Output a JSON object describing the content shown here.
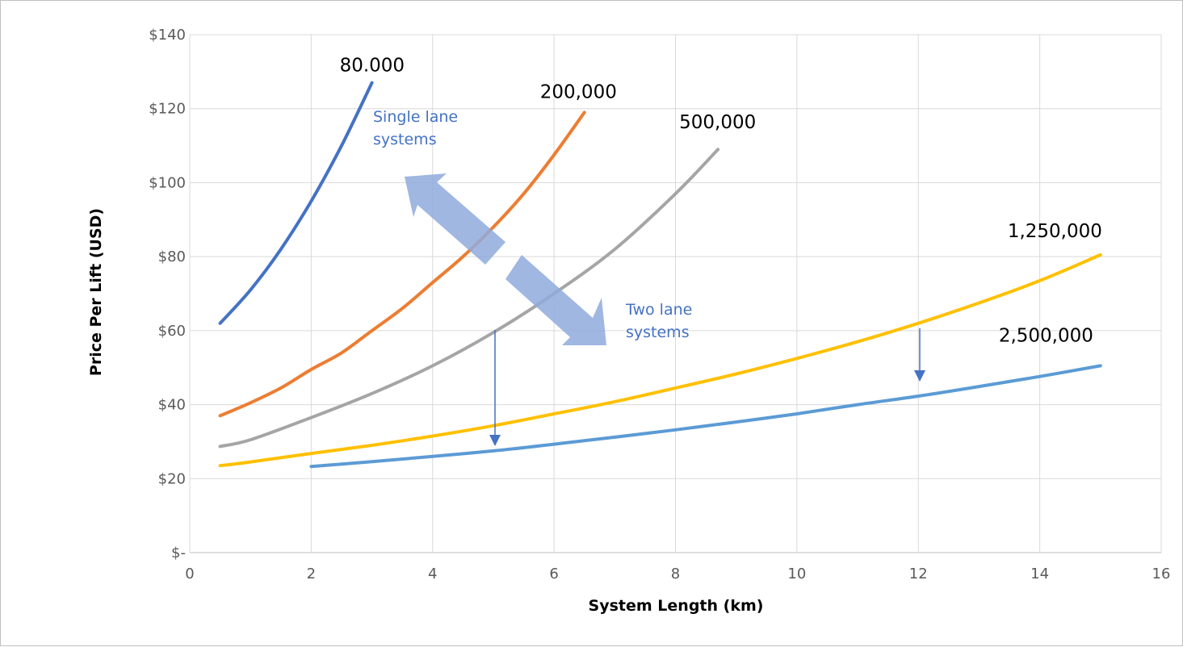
{
  "chart_data": {
    "type": "line",
    "title": "",
    "xlabel": "System Length (km)",
    "ylabel": "Price Per Lift (USD)",
    "xlim": [
      0,
      16
    ],
    "ylim": [
      0,
      140
    ],
    "x_ticks": [
      0,
      2,
      4,
      6,
      8,
      10,
      12,
      14,
      16
    ],
    "y_ticks": [
      {
        "value": 0,
        "label": "$-"
      },
      {
        "value": 20,
        "label": "$20"
      },
      {
        "value": 40,
        "label": "$40"
      },
      {
        "value": 60,
        "label": "$60"
      },
      {
        "value": 80,
        "label": "$80"
      },
      {
        "value": 100,
        "label": "$100"
      },
      {
        "value": 120,
        "label": "$120"
      },
      {
        "value": 140,
        "label": "$140"
      }
    ],
    "grid": true,
    "legend": "none",
    "series": [
      {
        "name": "80.000",
        "color": "#4472c4",
        "x": [
          0.5,
          1,
          1.5,
          2,
          2.5,
          3
        ],
        "y": [
          62,
          71,
          82,
          95,
          110,
          127
        ]
      },
      {
        "name": "200,000",
        "color": "#ed7d31",
        "x": [
          0.5,
          1,
          1.5,
          2,
          2.5,
          3,
          3.5,
          4,
          4.5,
          5,
          5.5,
          6,
          6.5
        ],
        "y": [
          37,
          40.5,
          44.5,
          49.5,
          54,
          60,
          66,
          73,
          80,
          88,
          97,
          107.5,
          119
        ]
      },
      {
        "name": "500,000",
        "color": "#a5a5a5",
        "x": [
          0.5,
          1,
          2,
          3,
          4,
          5,
          6,
          7,
          8,
          8.7
        ],
        "y": [
          28.7,
          30.5,
          36.5,
          43,
          50.5,
          59.5,
          70,
          82,
          97,
          109
        ]
      },
      {
        "name": "1,250,000",
        "color": "#ffc000",
        "x": [
          0.5,
          1,
          2,
          3,
          4,
          5,
          6,
          7,
          8,
          9,
          10,
          11,
          12,
          13,
          14,
          15
        ],
        "y": [
          23.5,
          24.5,
          26.8,
          29,
          31.5,
          34.3,
          37.5,
          40.8,
          44.5,
          48.3,
          52.5,
          57,
          62,
          67.5,
          73.5,
          80.5
        ]
      },
      {
        "name": "2,500,000",
        "color": "#5b9bd5",
        "x": [
          2,
          3,
          4,
          5,
          6,
          7,
          8,
          9,
          10,
          11,
          12,
          13,
          14,
          15
        ],
        "y": [
          23.3,
          24.6,
          26,
          27.5,
          29.3,
          31.2,
          33.2,
          35.3,
          37.5,
          40,
          42.3,
          44.9,
          47.6,
          50.5
        ]
      }
    ],
    "annotations": [
      {
        "id": "single",
        "lines": [
          "Single lane",
          "systems"
        ]
      },
      {
        "id": "two",
        "lines": [
          "Two lane",
          "systems"
        ]
      }
    ]
  }
}
